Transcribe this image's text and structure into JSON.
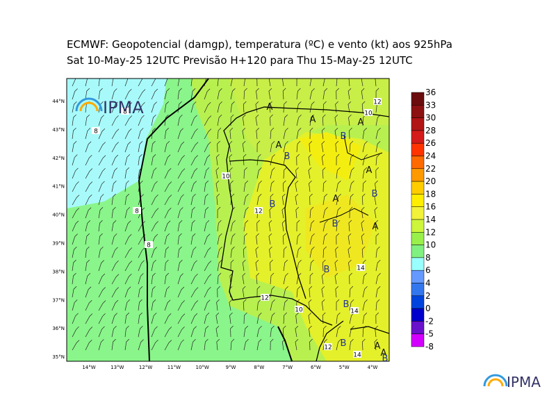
{
  "header": {
    "title_line1": "ECMWF:  Geopotencial (damgp), temperatura (ºC) e vento (kt) aos 925hPa",
    "title_line2": "Sat 10-May-25 12UTC Previsão H+120 para Thu 15-May-25 12UTC"
  },
  "map": {
    "lat_labels": [
      "44°N",
      "43°N",
      "42°N",
      "41°N",
      "40°N",
      "39°N",
      "38°N",
      "37°N",
      "36°N",
      "35°N"
    ],
    "lon_labels": [
      "14°W",
      "13°W",
      "12°W",
      "11°W",
      "10°W",
      "9°W",
      "8°W",
      "7°W",
      "6°W",
      "5°W",
      "4°W"
    ],
    "contour_labels": [
      "8",
      "8",
      "8",
      "8",
      "10",
      "12",
      "12",
      "10",
      "14",
      "14",
      "12",
      "14",
      "10",
      "12"
    ],
    "pressure_centers": [
      "A",
      "A",
      "A",
      "A",
      "B",
      "B",
      "A",
      "B",
      "A",
      "B",
      "A",
      "B",
      "A",
      "B",
      "B",
      "B",
      "A",
      "B"
    ],
    "logo": "IPMA"
  },
  "colorbar": {
    "labels": [
      36,
      33,
      30,
      28,
      26,
      24,
      22,
      20,
      18,
      16,
      14,
      12,
      10,
      8,
      6,
      4,
      2,
      0,
      -2,
      -5,
      -8
    ],
    "colors": [
      "#6b0d0d",
      "#8c1111",
      "#b01414",
      "#d41a1a",
      "#ff3300",
      "#ff6a00",
      "#ff9900",
      "#ffcc00",
      "#ffee00",
      "#f2f23a",
      "#ccf53b",
      "#99f04a",
      "#80f080",
      "#99ffff",
      "#6699ff",
      "#3377ee",
      "#0044dd",
      "#0000cc",
      "#6a11cc",
      "#d400ff"
    ]
  },
  "footer": {
    "logo": "IPMA"
  }
}
